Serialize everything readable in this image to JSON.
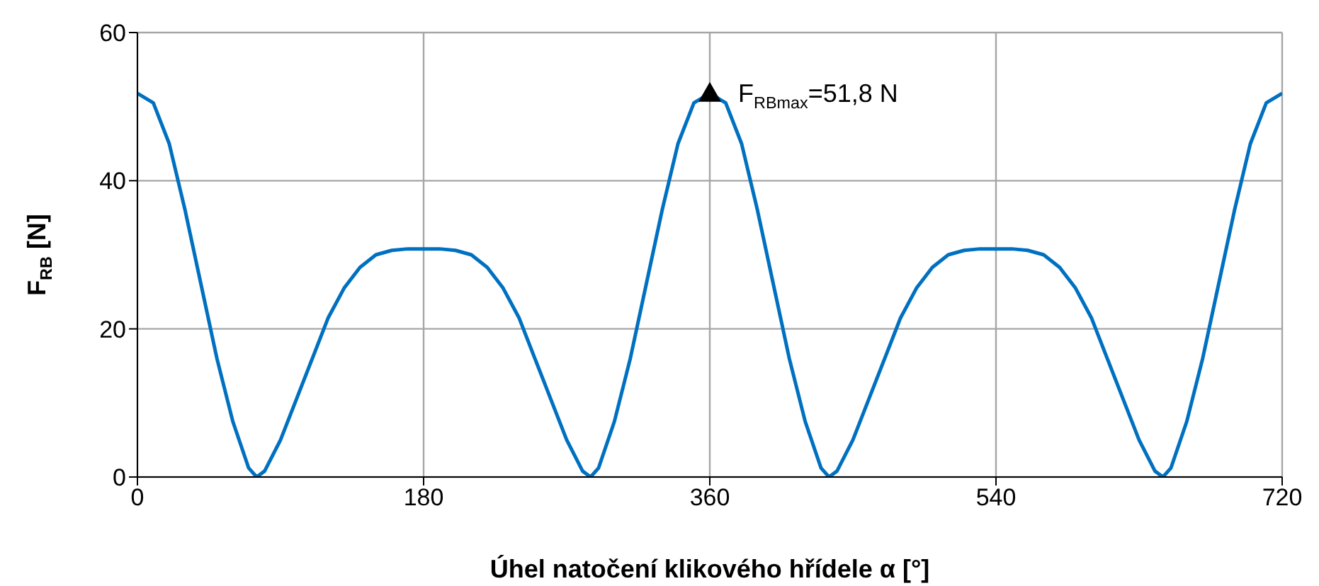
{
  "chart_data": {
    "type": "line",
    "xlabel": "Úhel natočení klikového hřídele α [°]",
    "ylabel": "F$_{RB}$ [N]",
    "x": [
      0,
      10,
      20,
      30,
      40,
      50,
      60,
      70,
      75,
      80,
      90,
      100,
      110,
      120,
      130,
      140,
      150,
      160,
      170,
      180,
      190,
      200,
      210,
      220,
      230,
      240,
      250,
      260,
      270,
      280,
      285,
      290,
      300,
      310,
      320,
      330,
      340,
      350,
      360,
      370,
      380,
      390,
      400,
      410,
      420,
      430,
      435,
      440,
      450,
      460,
      470,
      480,
      490,
      500,
      510,
      520,
      530,
      540,
      550,
      560,
      570,
      580,
      590,
      600,
      610,
      620,
      630,
      640,
      645,
      650,
      660,
      670,
      680,
      690,
      700,
      710,
      720
    ],
    "series": [
      {
        "color": "#0070c0",
        "values": [
          51.8,
          50.5,
          45,
          36,
          26,
          16,
          7.5,
          1.2,
          0,
          0.8,
          5,
          10.5,
          16,
          21.5,
          25.5,
          28.3,
          30,
          30.6,
          30.8,
          30.8,
          30.8,
          30.6,
          30,
          28.3,
          25.5,
          21.5,
          16,
          10.5,
          5,
          0.8,
          0,
          1.2,
          7.5,
          16,
          26,
          36,
          45,
          50.5,
          51.8,
          50.5,
          45,
          36,
          26,
          16,
          7.5,
          1.2,
          0,
          0.8,
          5,
          10.5,
          16,
          21.5,
          25.5,
          28.3,
          30,
          30.6,
          30.8,
          30.8,
          30.8,
          30.6,
          30,
          28.3,
          25.5,
          21.5,
          16,
          10.5,
          5,
          0.8,
          0,
          1.2,
          7.5,
          16,
          26,
          36,
          45,
          50.5,
          51.8
        ]
      }
    ],
    "xlim": [
      0,
      720
    ],
    "xticks": [
      0,
      180,
      360,
      540,
      720
    ],
    "ylim": [
      0,
      60
    ],
    "yticks": [
      0,
      20,
      40,
      60
    ],
    "grid": true,
    "marker": "none",
    "line_style": "solid",
    "annotations": [
      {
        "text": "F$_{RBmax}$=51,8 N",
        "x": 360,
        "y": 51.8
      }
    ]
  }
}
